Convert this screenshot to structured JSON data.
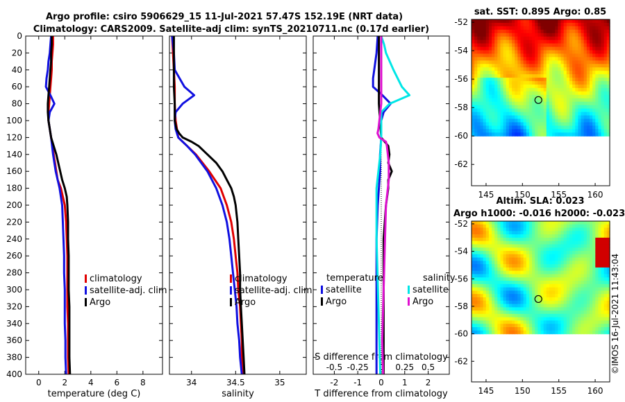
{
  "title": {
    "line1": "Argo profile: csiro 5906629_15 11-Jul-2021 57.47S 152.19E (NRT data)",
    "line2": "Climatology: CARS2009. Satellite-adj clim: synTS_20210711.nc (0.17d earlier)"
  },
  "colors": {
    "clim": "#e00000",
    "sat": "#1010e0",
    "argo": "#000000",
    "sat_s": "#00e6e6",
    "argo_s": "#e010d0"
  },
  "depth_ticks": [
    0,
    20,
    40,
    60,
    80,
    100,
    120,
    140,
    160,
    180,
    200,
    220,
    240,
    260,
    280,
    300,
    320,
    340,
    360,
    380,
    400
  ],
  "chart_data": [
    {
      "type": "line",
      "id": "temperature",
      "xlabel": "temperature (deg C)",
      "xlim": [
        -1,
        9.5
      ],
      "xticks": [
        0,
        2,
        4,
        6,
        8
      ],
      "xtick_labels": [
        "0",
        "2",
        "4",
        "6",
        "8"
      ],
      "ylim": [
        0,
        400
      ],
      "legend": [
        "climatology",
        "satellite-adj. clim",
        "Argo"
      ],
      "series": [
        {
          "name": "climatology",
          "color": "clim",
          "depth": [
            0,
            10,
            20,
            30,
            40,
            50,
            60,
            70,
            80,
            90,
            100,
            110,
            120,
            130,
            140,
            150,
            160,
            170,
            180,
            200,
            220,
            240,
            260,
            280,
            300,
            320,
            340,
            360,
            380,
            400
          ],
          "values": [
            1.1,
            1.1,
            1.05,
            1.0,
            1.0,
            0.95,
            0.9,
            0.85,
            0.8,
            0.75,
            0.75,
            0.85,
            0.95,
            1.05,
            1.15,
            1.25,
            1.35,
            1.45,
            1.7,
            2.0,
            2.1,
            2.15,
            2.2,
            2.2,
            2.2,
            2.2,
            2.25,
            2.25,
            2.25,
            2.3
          ]
        },
        {
          "name": "satellite-adj. clim",
          "color": "sat",
          "depth": [
            0,
            10,
            20,
            30,
            40,
            50,
            60,
            70,
            80,
            90,
            100,
            110,
            120,
            140,
            160,
            180,
            200,
            220,
            240,
            260,
            280,
            300,
            320,
            340,
            360,
            380,
            400
          ],
          "values": [
            0.95,
            0.9,
            0.85,
            0.75,
            0.7,
            0.6,
            0.55,
            0.9,
            1.2,
            0.85,
            0.75,
            0.85,
            0.95,
            1.1,
            1.3,
            1.6,
            1.8,
            1.85,
            1.9,
            1.95,
            1.95,
            2.0,
            2.0,
            2.0,
            2.05,
            2.05,
            2.1
          ]
        },
        {
          "name": "Argo",
          "color": "argo",
          "depth": [
            0,
            10,
            20,
            30,
            40,
            50,
            60,
            70,
            80,
            90,
            100,
            110,
            120,
            130,
            140,
            150,
            160,
            170,
            180,
            190,
            200,
            220,
            240,
            260,
            280,
            300,
            320,
            340,
            360,
            380,
            400
          ],
          "values": [
            1.0,
            1.0,
            0.95,
            0.95,
            0.9,
            0.85,
            0.8,
            0.75,
            0.7,
            0.7,
            0.75,
            0.85,
            0.95,
            1.15,
            1.35,
            1.5,
            1.65,
            1.8,
            2.0,
            2.15,
            2.2,
            2.25,
            2.25,
            2.3,
            2.3,
            2.3,
            2.35,
            2.35,
            2.35,
            2.35,
            2.4
          ]
        }
      ]
    },
    {
      "type": "line",
      "id": "salinity",
      "xlabel": "salinity",
      "xlim": [
        33.75,
        35.3
      ],
      "xticks": [
        34,
        34.5,
        35
      ],
      "xtick_labels": [
        "34",
        "34.5",
        "35"
      ],
      "ylim": [
        0,
        400
      ],
      "legend": [
        "climatology",
        "satellite-adj. clim",
        "Argo"
      ],
      "series": [
        {
          "name": "climatology",
          "color": "clim",
          "depth": [
            0,
            20,
            40,
            60,
            80,
            100,
            120,
            130,
            140,
            160,
            180,
            200,
            220,
            240,
            260,
            280,
            300,
            320,
            340,
            360,
            380,
            400
          ],
          "values": [
            33.78,
            33.79,
            33.8,
            33.81,
            33.81,
            33.82,
            33.85,
            33.95,
            34.05,
            34.2,
            34.33,
            34.4,
            34.45,
            34.48,
            34.5,
            34.52,
            34.53,
            34.55,
            34.56,
            34.57,
            34.57,
            34.58
          ]
        },
        {
          "name": "satellite-adj. clim",
          "color": "sat",
          "depth": [
            0,
            10,
            20,
            40,
            60,
            70,
            80,
            90,
            100,
            110,
            120,
            130,
            140,
            160,
            180,
            200,
            220,
            240,
            260,
            280,
            300,
            320,
            340,
            360,
            380,
            400
          ],
          "values": [
            33.78,
            33.79,
            33.8,
            33.81,
            33.92,
            34.03,
            33.9,
            33.82,
            33.81,
            33.82,
            33.85,
            33.95,
            34.04,
            34.18,
            34.28,
            34.35,
            34.4,
            34.43,
            34.45,
            34.47,
            34.49,
            34.51,
            34.52,
            34.54,
            34.55,
            34.57
          ]
        },
        {
          "name": "Argo",
          "color": "argo",
          "depth": [
            0,
            20,
            40,
            60,
            80,
            100,
            110,
            115,
            120,
            125,
            130,
            140,
            150,
            160,
            170,
            180,
            190,
            200,
            220,
            240,
            260,
            280,
            300,
            320,
            340,
            360,
            380,
            400
          ],
          "values": [
            33.8,
            33.8,
            33.8,
            33.8,
            33.81,
            33.81,
            33.83,
            33.86,
            33.9,
            34.0,
            34.08,
            34.18,
            34.28,
            34.35,
            34.4,
            34.45,
            34.48,
            34.5,
            34.52,
            34.53,
            34.54,
            34.55,
            34.55,
            34.56,
            34.57,
            34.58,
            34.59,
            34.6
          ]
        }
      ]
    },
    {
      "type": "line",
      "id": "differences",
      "xlabel": "T difference from climatology",
      "xlabel_top": "S difference from climatology",
      "xlim": [
        -2.9,
        2.9
      ],
      "xticks": [
        -2,
        -1,
        0,
        1,
        2
      ],
      "xtick_labels": [
        "-2",
        "-1",
        "0",
        "1",
        "2"
      ],
      "s_xlim": [
        -0.725,
        0.725
      ],
      "s_xticks": [
        -0.5,
        -0.25,
        0,
        0.25,
        0.5
      ],
      "s_xtick_labels": [
        "-0.5",
        "-0.25",
        "0",
        "0.25",
        "0.5"
      ],
      "ylim": [
        0,
        400
      ],
      "legend_t_header": "temperature",
      "legend_s_header": "salinity",
      "legend_t": [
        "satellite",
        "Argo"
      ],
      "legend_s": [
        "satellite",
        "Argo"
      ],
      "series": [
        {
          "name": "T satellite",
          "color": "sat",
          "scale": "t",
          "depth": [
            0,
            20,
            40,
            50,
            60,
            70,
            80,
            90,
            100,
            120,
            140,
            160,
            180,
            200,
            240,
            280,
            320,
            360,
            400
          ],
          "values": [
            -0.15,
            -0.2,
            -0.3,
            -0.35,
            -0.35,
            0.05,
            0.4,
            0.1,
            0.0,
            0.0,
            -0.05,
            -0.05,
            -0.1,
            -0.15,
            -0.2,
            -0.2,
            -0.2,
            -0.2,
            -0.2
          ]
        },
        {
          "name": "T Argo",
          "color": "argo",
          "scale": "t",
          "depth": [
            0,
            20,
            40,
            60,
            80,
            100,
            120,
            130,
            140,
            150,
            160,
            170,
            180,
            200,
            240,
            280,
            320,
            360,
            400
          ],
          "values": [
            -0.1,
            -0.1,
            -0.1,
            -0.1,
            -0.1,
            -0.05,
            0.0,
            0.3,
            0.35,
            0.3,
            0.45,
            0.3,
            0.3,
            0.2,
            0.1,
            0.1,
            0.1,
            0.1,
            0.1
          ]
        },
        {
          "name": "S satellite",
          "color": "sat_s",
          "scale": "s",
          "depth": [
            0,
            10,
            20,
            40,
            60,
            70,
            80,
            90,
            100,
            110,
            120,
            140,
            160,
            180,
            200,
            240,
            280,
            320,
            360,
            400
          ],
          "values": [
            0.0,
            0.03,
            0.05,
            0.13,
            0.22,
            0.3,
            0.09,
            0.0,
            0.0,
            0.0,
            0.0,
            -0.01,
            -0.03,
            -0.05,
            -0.05,
            -0.05,
            -0.04,
            -0.03,
            -0.02,
            -0.01
          ]
        },
        {
          "name": "S Argo",
          "color": "argo_s",
          "scale": "s",
          "depth": [
            0,
            20,
            40,
            60,
            80,
            90,
            100,
            110,
            115,
            120,
            125,
            130,
            140,
            150,
            160,
            170,
            180,
            200,
            240,
            280,
            320,
            360,
            400
          ],
          "values": [
            0.0,
            0.0,
            0.0,
            0.0,
            0.0,
            -0.01,
            -0.02,
            -0.03,
            -0.04,
            -0.02,
            0.05,
            0.06,
            0.07,
            0.08,
            0.08,
            0.08,
            0.07,
            0.05,
            0.04,
            0.03,
            0.02,
            0.01,
            0.02
          ]
        }
      ]
    },
    {
      "type": "heatmap",
      "id": "sst-map",
      "title": "sat. SST: 0.895 Argo: 0.85",
      "xlim": [
        143,
        162
      ],
      "ylim": [
        -63.5,
        -51.8
      ],
      "data_lat_min": -60,
      "xticks": [
        145,
        150,
        155,
        160
      ],
      "yticks": [
        -52,
        -54,
        -56,
        -58,
        -60,
        -62
      ],
      "ytick_labels": [
        "-52",
        "-54",
        "-56",
        "-58",
        "-60",
        "-62"
      ],
      "marker": {
        "lon": 152.19,
        "lat": -57.47
      }
    },
    {
      "type": "heatmap",
      "id": "sla-map",
      "title": "Altim. SLA: 0.023",
      "title2": "Argo h1000: -0.016 h2000: -0.023",
      "xlim": [
        143,
        162
      ],
      "ylim": [
        -63.5,
        -51.8
      ],
      "data_lat_min": -60,
      "xticks": [
        145,
        150,
        155,
        160
      ],
      "yticks": [
        -52,
        -54,
        -56,
        -58,
        -60,
        -62
      ],
      "ytick_labels": [
        "-52",
        "-54",
        "-56",
        "-58",
        "-60",
        "-62"
      ],
      "marker": {
        "lon": 152.19,
        "lat": -57.47
      }
    }
  ],
  "watermark": "©IMOS 16-Jul-2021 11:43:04"
}
